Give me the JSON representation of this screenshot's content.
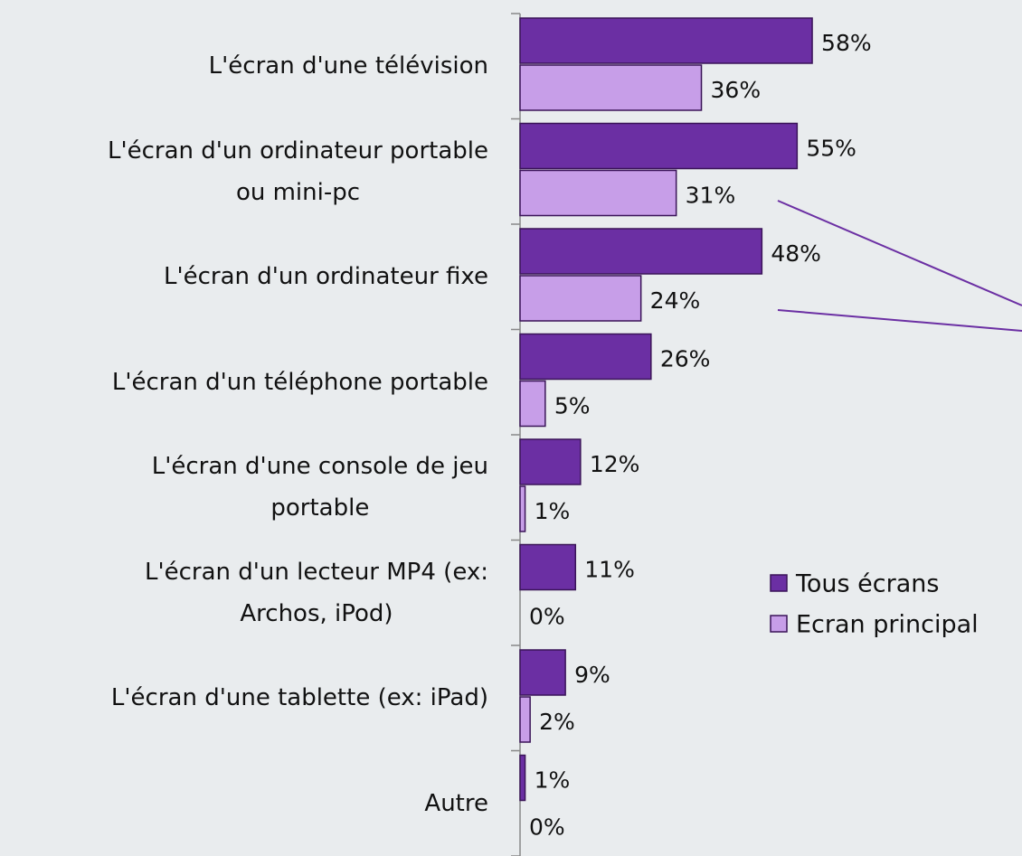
{
  "chart_data": {
    "type": "barh",
    "categories": [
      "L'écran d'une télévision",
      "L'écran d'un ordinateur portable\nou mini-pc",
      "L'écran d'un ordinateur fixe",
      "L'écran d'un téléphone portable",
      "L'écran d'une console de jeu\nportable",
      "L'écran d'un lecteur MP4 (ex:\nArchos, iPod)",
      "L'écran d'une tablette (ex: iPad)",
      "Autre"
    ],
    "series": [
      {
        "name": "Tous écrans",
        "color": "#6b2fa3",
        "values": [
          58,
          55,
          48,
          26,
          12,
          11,
          9,
          1
        ],
        "value_labels": [
          "58%",
          "55%",
          "48%",
          "26%",
          "12%",
          "11%",
          "9%",
          "1%"
        ]
      },
      {
        "name": "Ecran principal",
        "color": "#c79ee8",
        "values": [
          36,
          31,
          24,
          5,
          1,
          0,
          2,
          0
        ],
        "value_labels": [
          "36%",
          "31%",
          "24%",
          "5%",
          "1%",
          "0%",
          "2%",
          "0%"
        ]
      }
    ],
    "xlim": [
      0,
      100
    ]
  }
}
